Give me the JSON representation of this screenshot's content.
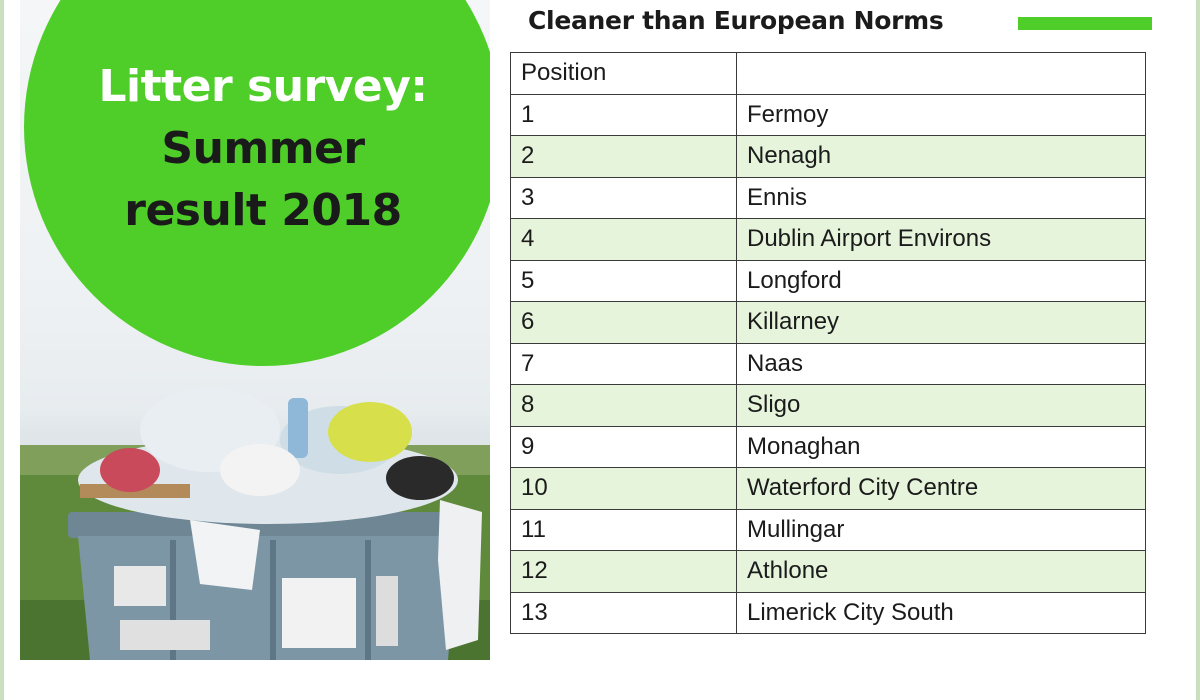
{
  "graphic": {
    "title_line1": "Litter survey:",
    "title_line2": "Summer",
    "title_line3": "result 2018",
    "accent_color": "#4fce2a"
  },
  "table": {
    "title": "Cleaner than European Norms",
    "legend_color": "#4fce2a",
    "column_headers": [
      "Position",
      ""
    ],
    "rows": [
      {
        "position": "1",
        "town": "Fermoy"
      },
      {
        "position": "2",
        "town": "Nenagh"
      },
      {
        "position": "3",
        "town": "Ennis"
      },
      {
        "position": "4",
        "town": "Dublin Airport Environs"
      },
      {
        "position": "5",
        "town": "Longford"
      },
      {
        "position": "6",
        "town": "Killarney"
      },
      {
        "position": "7",
        "town": "Naas"
      },
      {
        "position": "8",
        "town": "Sligo"
      },
      {
        "position": "9",
        "town": "Monaghan"
      },
      {
        "position": "10",
        "town": "Waterford City Centre"
      },
      {
        "position": "11",
        "town": "Mullingar"
      },
      {
        "position": "12",
        "town": "Athlone"
      },
      {
        "position": "13",
        "town": "Limerick City South"
      }
    ]
  }
}
